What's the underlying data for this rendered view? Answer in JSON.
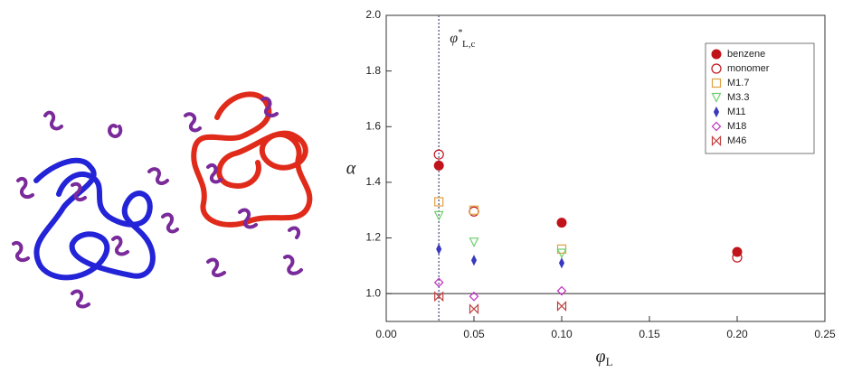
{
  "chart_data": {
    "type": "scatter",
    "xlabel": "φ",
    "xlabel_sub": "L",
    "ylabel": "α",
    "annotation": {
      "text": "φ",
      "sup": "*",
      "sub": "L,c"
    },
    "vline": 0.03,
    "hline": 1.0,
    "xlim": [
      0,
      0.25
    ],
    "xticks": [
      {
        "value": 0,
        "label": "0.00"
      },
      {
        "value": 0.05,
        "label": "0.05"
      },
      {
        "value": 0.1,
        "label": "0.10"
      },
      {
        "value": 0.15,
        "label": "0.15"
      },
      {
        "value": 0.2,
        "label": "0.20"
      },
      {
        "value": 0.25,
        "label": "0.25"
      }
    ],
    "ylim": [
      0.9,
      2.0
    ],
    "yticks": [
      {
        "value": 1,
        "label": "1.0"
      },
      {
        "value": 1.2,
        "label": "1.2"
      },
      {
        "value": 1.4,
        "label": "1.4"
      },
      {
        "value": 1.6,
        "label": "1.6"
      },
      {
        "value": 1.8,
        "label": "1.8"
      },
      {
        "value": 2,
        "label": "2.0"
      }
    ],
    "legend": "upper right",
    "series": [
      {
        "name": "benzene",
        "color": "#c0141a",
        "marker": "filled-circle",
        "x": [
          0.03,
          0.1,
          0.2
        ],
        "values": [
          1.46,
          1.255,
          1.15
        ]
      },
      {
        "name": "monomer",
        "color": "#c0141a",
        "marker": "circle",
        "x": [
          0.03,
          0.05,
          0.2
        ],
        "values": [
          1.5,
          1.295,
          1.13
        ]
      },
      {
        "name": "M1.7",
        "color": "#e0a040",
        "marker": "square",
        "x": [
          0.03,
          0.05,
          0.1
        ],
        "values": [
          1.33,
          1.3,
          1.16
        ]
      },
      {
        "name": "M3.3",
        "color": "#6fcf6f",
        "marker": "triangle-down",
        "x": [
          0.03,
          0.05,
          0.1
        ],
        "values": [
          1.28,
          1.185,
          1.145
        ]
      },
      {
        "name": "M11",
        "color": "#3838c0",
        "marker": "filled-diamond",
        "x": [
          0.03,
          0.05,
          0.1
        ],
        "values": [
          1.16,
          1.12,
          1.11
        ]
      },
      {
        "name": "M18",
        "color": "#c030c0",
        "marker": "diamond",
        "x": [
          0.03,
          0.05,
          0.1
        ],
        "values": [
          1.04,
          0.99,
          1.01
        ]
      },
      {
        "name": "M46",
        "color": "#c04040",
        "marker": "bowtie",
        "x": [
          0.03,
          0.05,
          0.1
        ],
        "values": [
          0.99,
          0.945,
          0.955
        ]
      }
    ]
  }
}
